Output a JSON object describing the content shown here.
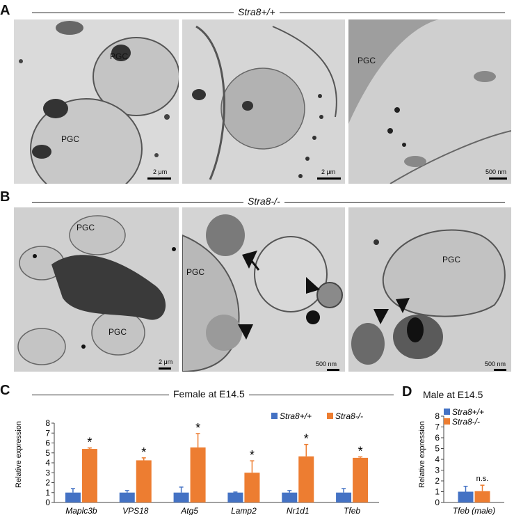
{
  "panels": {
    "A": {
      "letter": "A",
      "title": "Stra8+/+",
      "images": [
        {
          "labels": [
            "PGC",
            "PGC"
          ],
          "scale": "2 μm"
        },
        {
          "labels": [],
          "scale": "2 μm"
        },
        {
          "labels": [
            "PGC"
          ],
          "scale": "500 nm"
        }
      ]
    },
    "B": {
      "letter": "B",
      "title": "Stra8-/-",
      "images": [
        {
          "labels": [
            "PGC",
            "PGC"
          ],
          "scale": "2 μm"
        },
        {
          "labels": [
            "PGC"
          ],
          "scale": "500 nm"
        },
        {
          "labels": [
            "PGC"
          ],
          "scale": "500 nm"
        }
      ]
    },
    "C": {
      "letter": "C",
      "title": "Female at E14.5"
    },
    "D": {
      "letter": "D",
      "title": "Male at E14.5"
    }
  },
  "colors": {
    "wildtype": "#4472C4",
    "knockout": "#ED7D31"
  },
  "chart_data": [
    {
      "type": "bar",
      "title": "Female at E14.5",
      "ylabel": "Relative expression",
      "ylim": [
        0,
        8
      ],
      "yticks": [
        0,
        1,
        2,
        3,
        4,
        5,
        6,
        7,
        8
      ],
      "categories": [
        "Maplc3b",
        "VPS18",
        "Atg5",
        "Lamp2",
        "Nr1d1",
        "Tfeb"
      ],
      "series": [
        {
          "name": "Stra8+/+",
          "values": [
            1.0,
            1.0,
            1.0,
            1.0,
            1.0,
            1.0
          ],
          "errors": [
            0.4,
            0.2,
            0.55,
            0.05,
            0.2,
            0.4
          ]
        },
        {
          "name": "Stra8-/-",
          "values": [
            5.4,
            4.25,
            5.55,
            3.0,
            4.65,
            4.5
          ],
          "errors": [
            0.1,
            0.25,
            1.4,
            1.2,
            1.2,
            0.1
          ]
        }
      ],
      "annotations": [
        "*",
        "*",
        "*",
        "*",
        "*",
        "*"
      ],
      "legend_position": "top-right"
    },
    {
      "type": "bar",
      "title": "Male at E14.5",
      "ylabel": "Relative expression",
      "ylim": [
        0,
        8
      ],
      "yticks": [
        0,
        1,
        2,
        3,
        4,
        5,
        6,
        7,
        8
      ],
      "categories": [
        "Tfeb (male)"
      ],
      "series": [
        {
          "name": "Stra8+/+",
          "values": [
            1.0
          ],
          "errors": [
            0.5
          ]
        },
        {
          "name": "Stra8-/-",
          "values": [
            1.05
          ],
          "errors": [
            0.55
          ]
        }
      ],
      "annotations": [
        "n.s."
      ],
      "legend_position": "top-left"
    }
  ]
}
